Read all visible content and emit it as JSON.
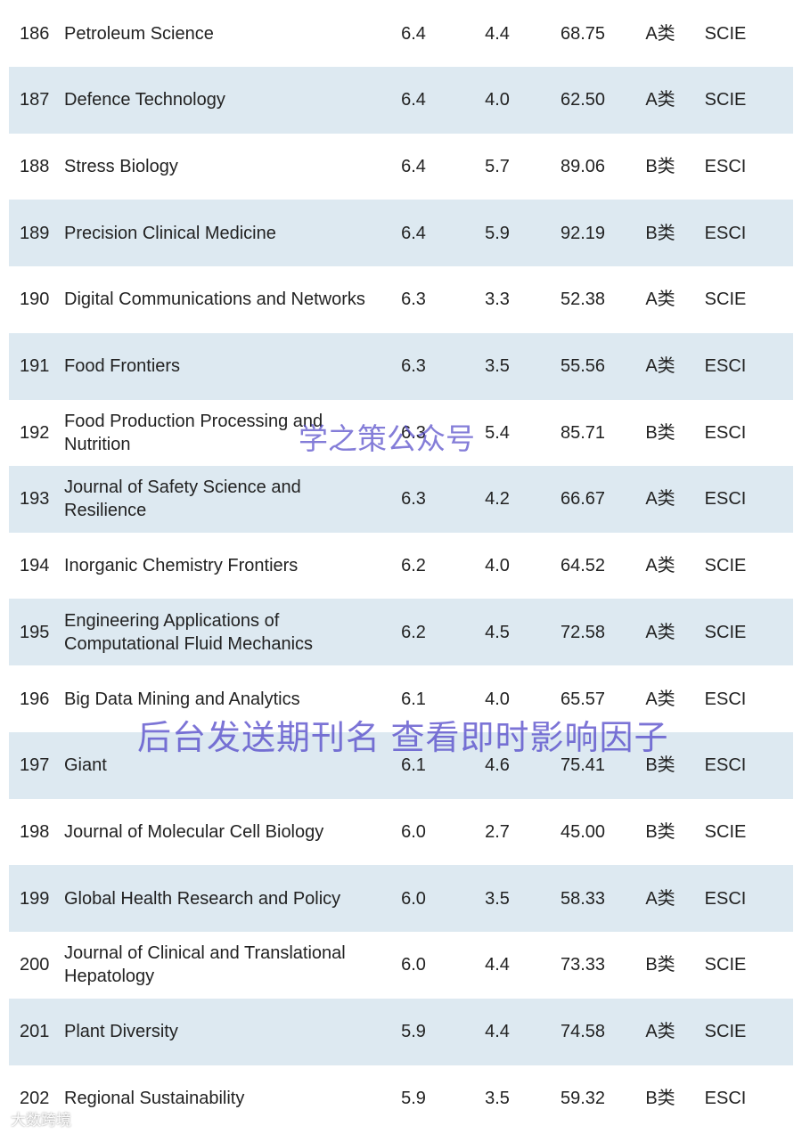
{
  "table": {
    "rows": [
      {
        "no": "186",
        "name": [
          "Petroleum Science"
        ],
        "c1": "6.4",
        "c2": "4.4",
        "c3": "68.75",
        "cls": "A类",
        "idx": "SCIE"
      },
      {
        "no": "187",
        "name": [
          "Defence Technology"
        ],
        "c1": "6.4",
        "c2": "4.0",
        "c3": "62.50",
        "cls": "A类",
        "idx": "SCIE"
      },
      {
        "no": "188",
        "name": [
          "Stress Biology"
        ],
        "c1": "6.4",
        "c2": "5.7",
        "c3": "89.06",
        "cls": "B类",
        "idx": "ESCI"
      },
      {
        "no": "189",
        "name": [
          "Precision Clinical Medicine"
        ],
        "c1": "6.4",
        "c2": "5.9",
        "c3": "92.19",
        "cls": "B类",
        "idx": "ESCI"
      },
      {
        "no": "190",
        "name": [
          "Digital Communications and Networks"
        ],
        "c1": "6.3",
        "c2": "3.3",
        "c3": "52.38",
        "cls": "A类",
        "idx": "SCIE"
      },
      {
        "no": "191",
        "name": [
          "Food Frontiers"
        ],
        "c1": "6.3",
        "c2": "3.5",
        "c3": "55.56",
        "cls": "A类",
        "idx": "ESCI"
      },
      {
        "no": "192",
        "name": [
          "Food Production Processing and",
          "Nutrition"
        ],
        "c1": "6.3",
        "c2": "5.4",
        "c3": "85.71",
        "cls": "B类",
        "idx": "ESCI"
      },
      {
        "no": "193",
        "name": [
          "Journal of Safety Science and",
          "Resilience"
        ],
        "c1": "6.3",
        "c2": "4.2",
        "c3": "66.67",
        "cls": "A类",
        "idx": "ESCI"
      },
      {
        "no": "194",
        "name": [
          "Inorganic Chemistry Frontiers"
        ],
        "c1": "6.2",
        "c2": "4.0",
        "c3": "64.52",
        "cls": "A类",
        "idx": "SCIE"
      },
      {
        "no": "195",
        "name": [
          "Engineering Applications of",
          "Computational Fluid Mechanics"
        ],
        "c1": "6.2",
        "c2": "4.5",
        "c3": "72.58",
        "cls": "A类",
        "idx": "SCIE"
      },
      {
        "no": "196",
        "name": [
          "Big Data Mining and Analytics"
        ],
        "c1": "6.1",
        "c2": "4.0",
        "c3": "65.57",
        "cls": "A类",
        "idx": "ESCI"
      },
      {
        "no": "197",
        "name": [
          "Giant"
        ],
        "c1": "6.1",
        "c2": "4.6",
        "c3": "75.41",
        "cls": "B类",
        "idx": "ESCI"
      },
      {
        "no": "198",
        "name": [
          "Journal of Molecular Cell Biology"
        ],
        "c1": "6.0",
        "c2": "2.7",
        "c3": "45.00",
        "cls": "B类",
        "idx": "SCIE"
      },
      {
        "no": "199",
        "name": [
          "Global Health Research and Policy"
        ],
        "c1": "6.0",
        "c2": "3.5",
        "c3": "58.33",
        "cls": "A类",
        "idx": "ESCI"
      },
      {
        "no": "200",
        "name": [
          "Journal of Clinical and Translational",
          "Hepatology"
        ],
        "c1": "6.0",
        "c2": "4.4",
        "c3": "73.33",
        "cls": "B类",
        "idx": "SCIE"
      },
      {
        "no": "201",
        "name": [
          "Plant Diversity"
        ],
        "c1": "5.9",
        "c2": "4.4",
        "c3": "74.58",
        "cls": "A类",
        "idx": "SCIE"
      },
      {
        "no": "202",
        "name": [
          "Regional Sustainability"
        ],
        "c1": "5.9",
        "c2": "3.5",
        "c3": "59.32",
        "cls": "B类",
        "idx": "ESCI"
      }
    ]
  },
  "watermarks": {
    "account": "学之策公众号",
    "hint": "后台发送期刊名 查看即时影响因子",
    "source": "大数跨境"
  }
}
